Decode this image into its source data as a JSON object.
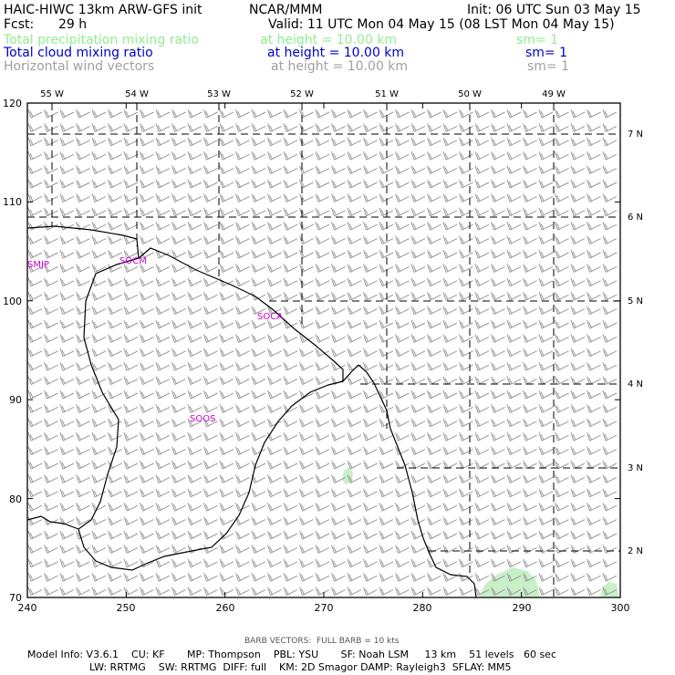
{
  "header": {
    "title_left": "HAIC-HIWC 13km ARW-GFS init",
    "org": "NCAR/MMM",
    "init": "Init: 06 UTC Sun 03 May 15",
    "fcst_label": "Fcst:",
    "fcst_value": "29 h",
    "valid": "Valid: 11 UTC Mon 04 May 15 (08 LST Mon 04 May 15)",
    "fields": [
      {
        "name": "Total precipitation mixing ratio",
        "level": "at height = 10.00 km",
        "smooth": "sm= 1",
        "color": "#90ee90"
      },
      {
        "name": "Total cloud mixing ratio",
        "level": "at height = 10.00 km",
        "smooth": "sm= 1",
        "color": "#0000cd"
      },
      {
        "name": "Horizontal wind vectors",
        "level": "at height = 10.00 km",
        "smooth": "sm= 1",
        "color": "#a0a0a0"
      }
    ]
  },
  "map": {
    "x_ticks": [
      "240",
      "250",
      "260",
      "270",
      "280",
      "290",
      "300"
    ],
    "y_ticks": [
      "70",
      "80",
      "90",
      "100",
      "110",
      "120"
    ],
    "lon_labels": [
      "55 W",
      "54 W",
      "53 W",
      "52 W",
      "51 W",
      "50 W",
      "49 W"
    ],
    "lat_labels": [
      "7 N",
      "6 N",
      "5 N",
      "4 N",
      "3 N",
      "2 N"
    ],
    "stations": [
      "SMJP",
      "SOCM",
      "SOCA",
      "SOOS"
    ],
    "station_color": "#cc00cc",
    "coast_color": "#000000",
    "barb_color": "#999999",
    "precip_color": "#c8f0c8"
  },
  "footer": {
    "barb_note": "BARB VECTORS:  FULL BARB = 10 kts",
    "model_line1": "Model Info: V3.6.1    CU: KF       MP: Thompson    PBL: YSU       SF: Noah LSM     13 km    51 levels   60 sec",
    "model_line2": "LW: RRTMG    SW: RRTMG  DIFF: full    KM: 2D Smagor DAMP: Rayleigh3  SFLAY: MM5"
  }
}
